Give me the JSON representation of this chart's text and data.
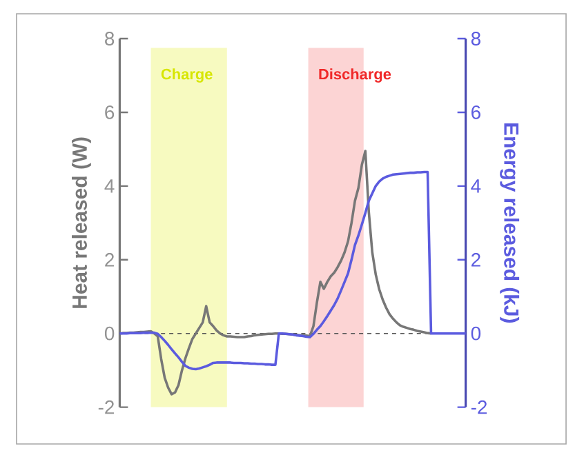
{
  "chart_data": {
    "type": "line",
    "ylabel": "Heat released (W)",
    "y2label": "Energy released (kJ)",
    "categories": [
      null,
      null,
      null,
      null,
      null,
      null,
      null,
      null,
      null,
      null,
      null,
      null,
      null,
      null,
      null,
      null,
      null,
      null,
      null,
      null,
      null,
      null,
      null,
      null,
      null,
      null,
      null,
      null,
      null,
      null,
      null,
      null,
      null,
      null,
      null,
      null,
      null,
      null,
      null,
      null,
      null,
      null,
      null,
      null,
      null,
      null,
      null,
      null,
      null,
      null,
      null,
      null,
      null,
      null,
      null,
      null,
      null,
      null,
      null,
      null,
      null,
      null,
      null,
      null,
      null,
      null,
      null,
      null,
      null,
      null,
      null,
      null,
      null,
      null,
      null,
      null,
      null,
      null,
      null,
      null,
      null,
      null,
      null,
      null,
      null,
      null,
      null,
      null,
      null,
      null,
      null,
      null,
      null,
      null,
      null,
      null,
      null,
      null,
      null,
      null,
      null
    ],
    "ylim": [
      -2,
      8
    ],
    "yticks": [
      -2,
      0,
      2,
      4,
      6,
      8
    ],
    "y2lim": [
      -2,
      8
    ],
    "y2ticks": [
      -2,
      0,
      2,
      4,
      6,
      8
    ],
    "series": [
      {
        "color": "#777777",
        "values": [
          0,
          0.01,
          0.01,
          0.02,
          0.02,
          0.03,
          0.04,
          0.04,
          0.05,
          0.06,
          0.0,
          -0.08,
          -0.7,
          -1.2,
          -1.47,
          -1.65,
          -1.6,
          -1.4,
          -1.0,
          -0.67,
          -0.4,
          -0.15,
          0.0,
          0.15,
          0.3,
          0.74,
          0.3,
          0.2,
          0.08,
          0.0,
          -0.05,
          -0.08,
          -0.08,
          -0.09,
          -0.1,
          -0.1,
          -0.1,
          -0.08,
          -0.07,
          -0.05,
          -0.04,
          -0.03,
          -0.02,
          -0.01,
          -0.01,
          0,
          0,
          -0.01,
          -0.01,
          -0.02,
          -0.03,
          -0.04,
          -0.05,
          -0.05,
          -0.06,
          -0.07,
          0.2,
          0.84,
          1.4,
          1.21,
          1.4,
          1.55,
          1.65,
          1.8,
          1.98,
          2.2,
          2.5,
          3.0,
          3.6,
          3.95,
          4.58,
          4.95,
          3.3,
          2.2,
          1.6,
          1.2,
          0.92,
          0.7,
          0.52,
          0.4,
          0.3,
          0.22,
          0.18,
          0.15,
          0.12,
          0.1,
          0.07,
          0.05,
          0.03,
          0.01,
          0,
          null,
          null,
          null,
          null,
          null,
          null,
          null,
          null,
          null,
          null
        ]
      },
      {
        "color": "#5b5bdf",
        "axis": "y2",
        "values": [
          0,
          0,
          0,
          0.01,
          0.01,
          0.01,
          0.01,
          0.02,
          0.02,
          0.02,
          0.02,
          -0.01,
          -0.1,
          -0.2,
          -0.31,
          -0.43,
          -0.54,
          -0.65,
          -0.77,
          -0.88,
          -0.93,
          -0.96,
          -0.97,
          -0.95,
          -0.92,
          -0.89,
          -0.85,
          -0.8,
          -0.79,
          -0.79,
          -0.79,
          -0.79,
          -0.79,
          -0.8,
          -0.8,
          -0.8,
          -0.81,
          -0.81,
          -0.82,
          -0.82,
          -0.83,
          -0.83,
          -0.84,
          -0.84,
          -0.85,
          -0.85,
          0,
          0,
          -0.01,
          -0.02,
          -0.03,
          -0.05,
          -0.06,
          -0.07,
          -0.09,
          -0.1,
          -0.01,
          0.1,
          0.2,
          0.33,
          0.47,
          0.62,
          0.77,
          0.95,
          1.17,
          1.4,
          1.63,
          2.0,
          2.4,
          2.66,
          2.96,
          3.27,
          3.6,
          3.8,
          4.0,
          4.12,
          4.2,
          4.25,
          4.28,
          4.31,
          4.32,
          4.33,
          4.34,
          4.35,
          4.36,
          4.36,
          4.37,
          4.37,
          4.38,
          4.38,
          0,
          0,
          0,
          0,
          0,
          0,
          0,
          0,
          0,
          0,
          0
        ]
      }
    ],
    "annotations": [
      "Charge",
      "Discharge"
    ],
    "ref_lines": [
      {
        "axis": "y",
        "value": 0,
        "color": "#555555",
        "line_style": "dashed"
      }
    ],
    "line_style": "solid",
    "marker": "none"
  }
}
